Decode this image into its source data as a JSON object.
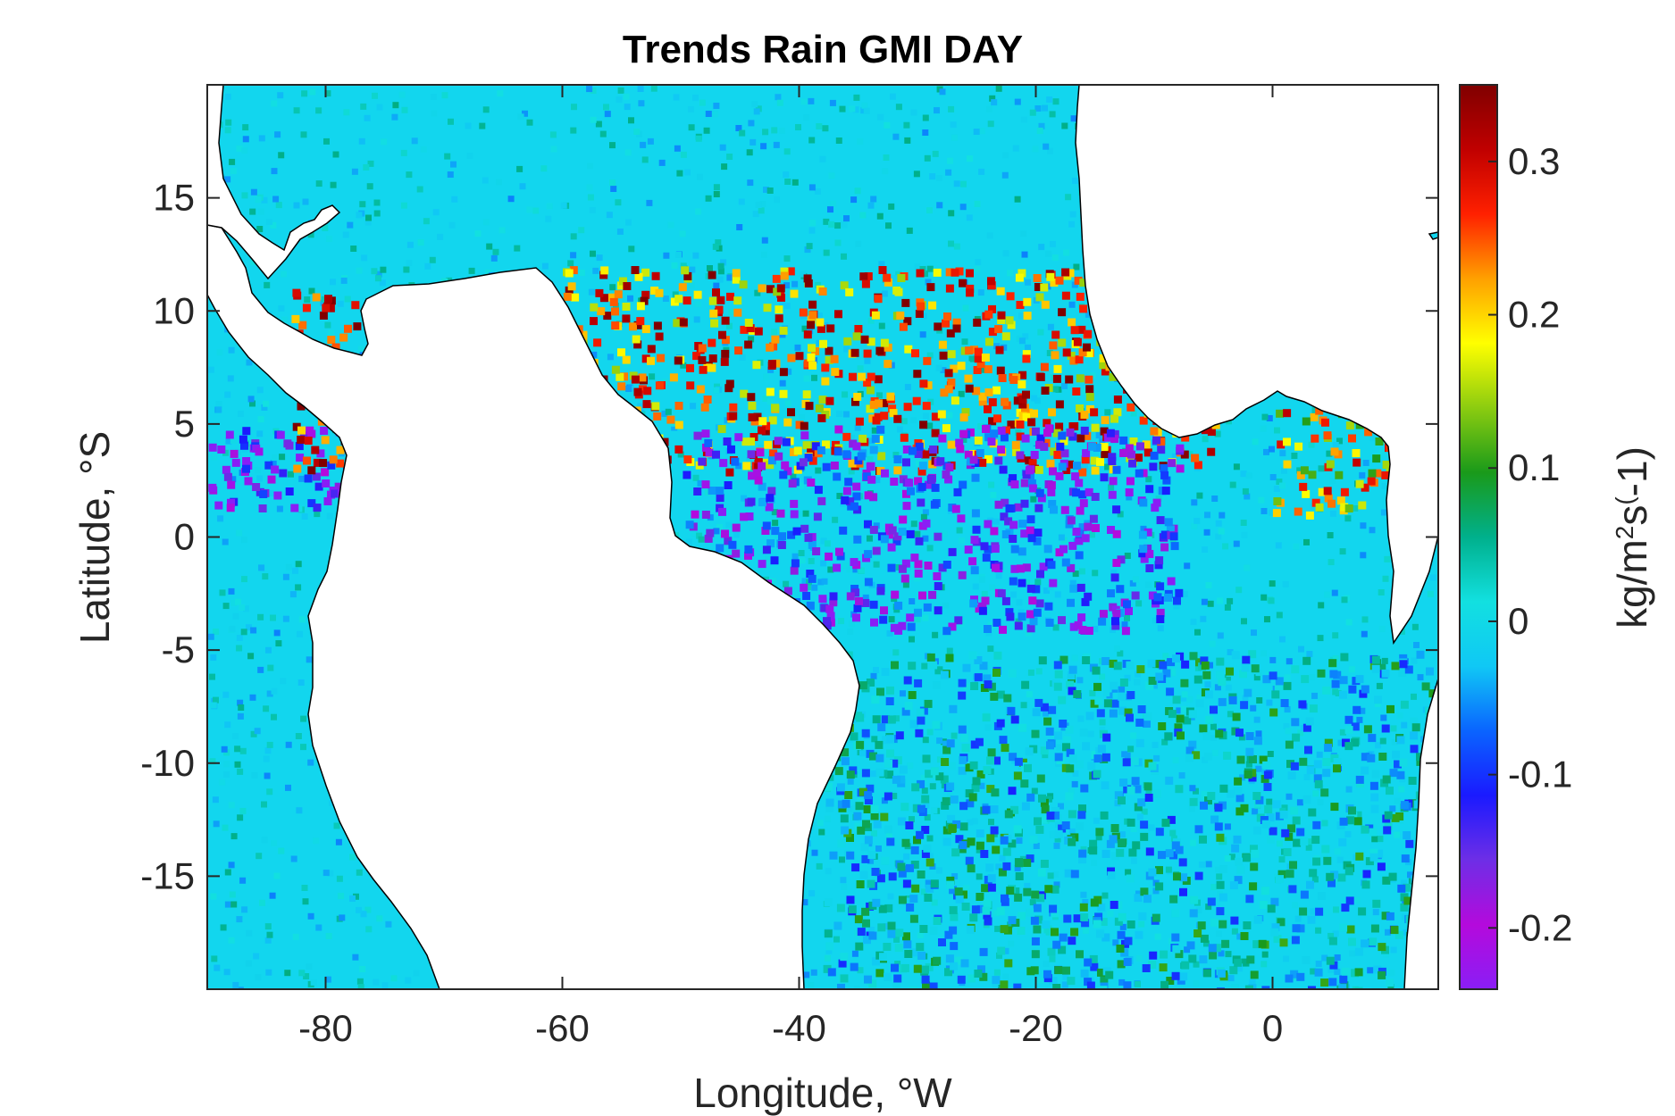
{
  "chart_data": {
    "type": "heatmap",
    "title": "Trends Rain GMI DAY",
    "xlabel": "Longitude, °W",
    "ylabel": "Latitude, °S",
    "xlim": [
      -90,
      14
    ],
    "ylim": [
      -20,
      20
    ],
    "xticks": [
      -80,
      -60,
      -40,
      -20,
      0
    ],
    "yticks": [
      15,
      10,
      5,
      0,
      -5,
      -10,
      -15
    ],
    "colorbar": {
      "label_parts": [
        "kg/m",
        "2",
        "s",
        "(",
        "-1)"
      ],
      "range": [
        -0.24,
        0.35
      ],
      "ticks": [
        0.3,
        0.2,
        0.1,
        0,
        -0.1,
        -0.2
      ],
      "colormap": "jet-like (purple, blue, cyan, green, yellow, red, dark red)",
      "colors": [
        "#8a1ef5",
        "#b40adc",
        "#6e2ee6",
        "#1a1aff",
        "#0a64ff",
        "#10c8f5",
        "#12e0e0",
        "#00b08c",
        "#1a9a1a",
        "#8ccc10",
        "#ffff00",
        "#ffa000",
        "#ff2000",
        "#c00000",
        "#800000"
      ]
    },
    "features": [
      {
        "name": "ITCZ positive trend band",
        "lon_range": [
          -60,
          -5
        ],
        "lat_range": [
          3,
          12
        ],
        "approx_value": 0.25
      },
      {
        "name": "Negative trend band south of ITCZ",
        "lon_range": [
          -50,
          -8
        ],
        "lat_range": [
          -4,
          5
        ],
        "approx_value": -0.15
      },
      {
        "name": "Eastern Pacific negative band",
        "lon_range": [
          -90,
          -78
        ],
        "lat_range": [
          1,
          5
        ],
        "approx_value": -0.2
      },
      {
        "name": "Panama / Colombia coast maximum",
        "lon_range": [
          -83,
          -77
        ],
        "lat_range": [
          3,
          11
        ],
        "approx_value": 0.3
      },
      {
        "name": "Gulf of Guinea positive trend",
        "lon_range": [
          0,
          10
        ],
        "lat_range": [
          1,
          6
        ],
        "approx_value": 0.2
      },
      {
        "name": "South Atlantic near-zero region",
        "lon_range": [
          -38,
          14
        ],
        "lat_range": [
          -20,
          -5
        ],
        "approx_value": 0.0
      }
    ]
  }
}
